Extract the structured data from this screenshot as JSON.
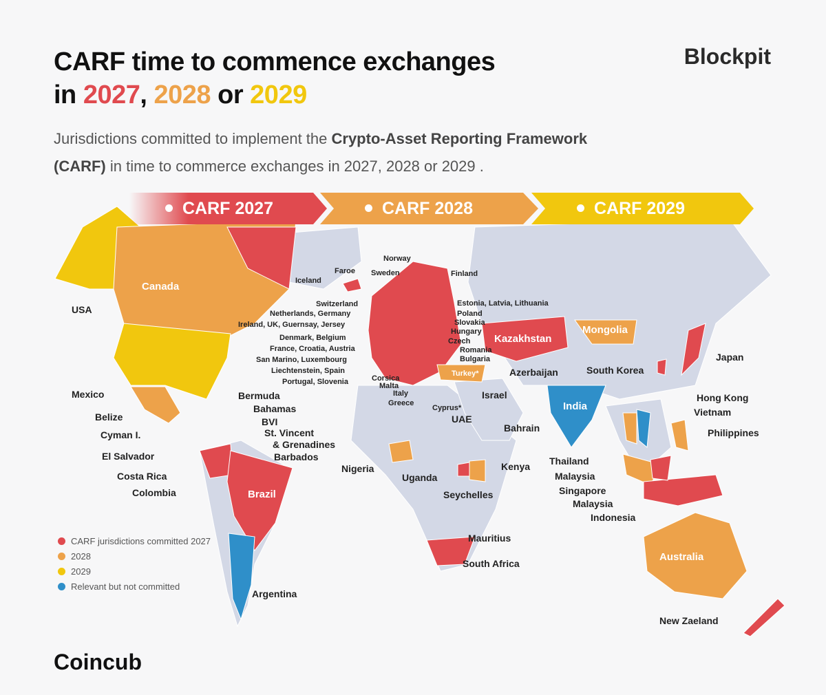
{
  "title": {
    "line1": "CARF time to commence exchanges",
    "prefix": "in ",
    "y2027": "2027",
    "sep1": ", ",
    "y2028": "2028",
    "sep2": " or ",
    "y2029": "2029"
  },
  "subtitle": {
    "pre": "Jurisdictions committed to implement the ",
    "bold1": "Crypto-Asset Reporting Framework",
    "bold2": "(CARF)",
    "post": " in time to commerce exchanges in 2027, 2028 or 2029 ."
  },
  "brand_top": "Blockpit",
  "brand_bottom": "Coincub",
  "banners": [
    "CARF 2027",
    "CARF 2028",
    "CARF 2029"
  ],
  "colors": {
    "y2027": "#e04a4f",
    "y2028": "#eda24a",
    "y2029": "#f1c70e",
    "not_committed": "#2f8fc9",
    "land": "#d3d8e6"
  },
  "legend": [
    {
      "label": "CARF jurisdictions committed 2027",
      "color": "#e04a4f"
    },
    {
      "label": "2028",
      "color": "#eda24a"
    },
    {
      "label": "2029",
      "color": "#f1c70e"
    },
    {
      "label": "Relevant but not committed",
      "color": "#2f8fc9"
    }
  ],
  "labels": {
    "usa": "USA",
    "canada": "Canada",
    "mexico": "Mexico",
    "belize": "Belize",
    "cayman": "Cyman I.",
    "el_salvador": "El Salvador",
    "costa_rica": "Costa Rica",
    "colombia": "Colombia",
    "bermuda": "Bermuda",
    "bahamas": "Bahamas",
    "bvi": "BVI",
    "st_vincent_1": "St. Vincent",
    "st_vincent_2": "& Grenadines",
    "barbados": "Barbados",
    "brazil": "Brazil",
    "argentina": "Argentina",
    "norway": "Norway",
    "faroe": "Faroe",
    "sweden": "Sweden",
    "finland": "Finland",
    "iceland": "Iceland",
    "switzerland": "Switzerland",
    "netherlands": "Netherlands, Germany",
    "ireland": "Ireland, UK, Guernsay, Jersey",
    "denmark": "Denmark, Belgium",
    "france": "France, Croatia, Austria",
    "san_marino": "San Marino, Luxembourg",
    "liechtenstein": "Liechtenstein, Spain",
    "portugal": "Portugal, Slovenia",
    "corsica": "Corsica",
    "malta": "Malta",
    "italy": "Italy",
    "greece": "Greece",
    "cyprus": "Cyprus*",
    "estonia": "Estonia, Latvia, Lithuania",
    "poland": "Poland",
    "slovakia": "Slovakia",
    "hungary": "Hungary",
    "czech": "Czech",
    "romania": "Romania",
    "bulgaria": "Bulgaria",
    "turkey": "Turkey*",
    "kazakhstan": "Kazakhstan",
    "mongolia": "Mongolia",
    "azerbaijan": "Azerbaijan",
    "israel": "Israel",
    "uae": "UAE",
    "bahrain": "Bahrain",
    "india": "India",
    "japan": "Japan",
    "south_korea": "South Korea",
    "hong_kong": "Hong Kong",
    "vietnam": "Vietnam",
    "philippines": "Philippines",
    "thailand": "Thailand",
    "malaysia1": "Malaysia",
    "singapore": "Singapore",
    "malaysia2": "Malaysia",
    "indonesia": "Indonesia",
    "nigeria": "Nigeria",
    "uganda": "Uganda",
    "kenya": "Kenya",
    "seychelles": "Seychelles",
    "mauritius": "Mauritius",
    "south_africa": "South Africa",
    "australia": "Australia",
    "new_zealand": "New Zaeland"
  }
}
